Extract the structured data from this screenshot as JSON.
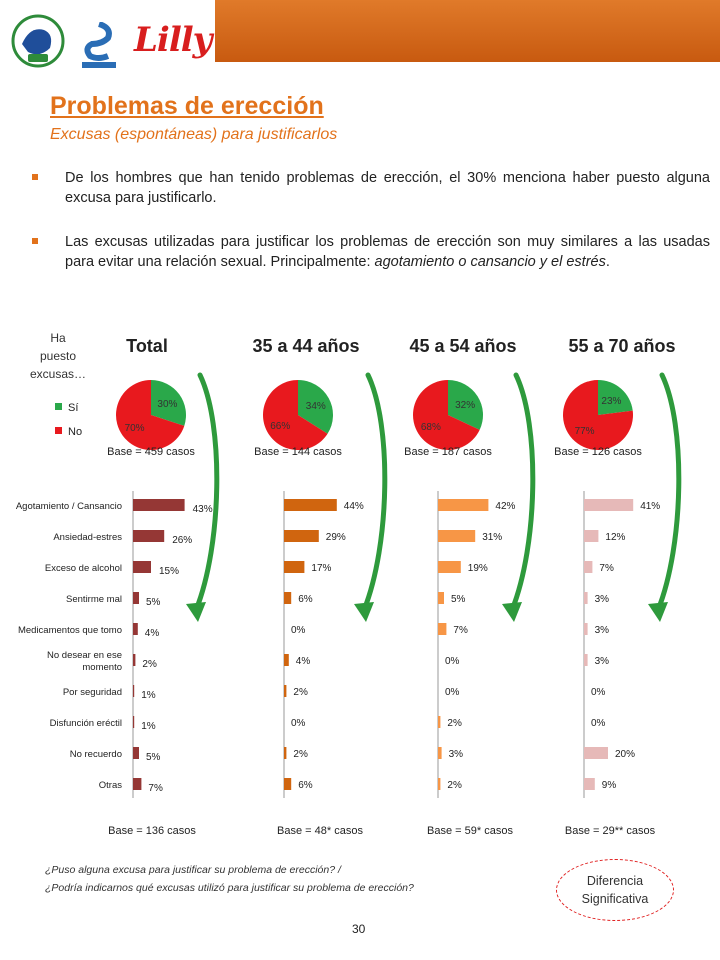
{
  "header": {
    "title": "Problemas de erección",
    "subtitle": "Excusas (espontáneas) para justificarlos",
    "logos": [
      "AESS",
      "ASESA",
      "Lilly"
    ],
    "accent": "#e2721b"
  },
  "bullets": [
    {
      "text": "De los hombres que han tenido problemas de erección, el 30% menciona haber puesto alguna excusa para justificarlo."
    },
    {
      "text_plain": "Las  excusas utilizadas para justificar los problemas de erección son muy similares a las usadas para evitar una relación sexual. Principalmente:",
      "text_italic": "agotamiento o cansancio y el estrés",
      "text_end": "."
    }
  ],
  "pie_question": "Ha puesto excusas…",
  "pie_question_lines": [
    "Ha",
    "puesto",
    "excusas…"
  ],
  "legend": [
    {
      "label": "Sí",
      "color": "#2aa84a"
    },
    {
      "label": "No",
      "color": "#e8191e"
    }
  ],
  "groups": [
    {
      "title": "Total",
      "pie_base": "Base = 459 casos",
      "bar_base": "Base = 136 casos",
      "bar_color": "#953735"
    },
    {
      "title": "35 a 44 años",
      "pie_base": "Base = 144 casos",
      "bar_base": "Base = 48* casos",
      "bar_color": "#d0650f"
    },
    {
      "title": "45 a 54 años",
      "pie_base": "Base = 187 casos",
      "bar_base": "Base = 59* casos",
      "bar_color": "#f79646"
    },
    {
      "title": "55 a 70 años",
      "pie_base": "Base = 126 casos",
      "bar_base": "Base = 29** casos",
      "bar_color": "#e6b9b8"
    }
  ],
  "chart_data": [
    {
      "type": "pie",
      "title": "Total",
      "labels": [
        "Sí",
        "No"
      ],
      "values": [
        30,
        70
      ],
      "value_labels": [
        "30%",
        "70%"
      ]
    },
    {
      "type": "pie",
      "title": "35 a 44 años",
      "labels": [
        "Sí",
        "No"
      ],
      "values": [
        34,
        66
      ],
      "value_labels": [
        "34%",
        "66%"
      ]
    },
    {
      "type": "pie",
      "title": "45 a 54 años",
      "labels": [
        "Sí",
        "No"
      ],
      "values": [
        32,
        68
      ],
      "value_labels": [
        "32%",
        "68%"
      ]
    },
    {
      "type": "pie",
      "title": "55 a 70 años",
      "labels": [
        "Sí",
        "No"
      ],
      "values": [
        23,
        77
      ],
      "value_labels": [
        "23%",
        "77%"
      ]
    },
    {
      "type": "bar",
      "orientation": "horizontal",
      "categories": [
        "Agotamiento / Cansancio",
        "Ansiedad-estres",
        "Exceso de alcohol",
        "Sentirme mal",
        "Medicamentos que tomo",
        "No desear en ese momento",
        "Por seguridad",
        "Disfunción eréctil",
        "No recuerdo",
        "Otras"
      ],
      "category_lines": [
        [
          "Agotamiento / Cansancio"
        ],
        [
          "Ansiedad-estres"
        ],
        [
          "Exceso de alcohol"
        ],
        [
          "Sentirme mal"
        ],
        [
          "Medicamentos que tomo"
        ],
        [
          "No desear en ese",
          "momento"
        ],
        [
          "Por seguridad"
        ],
        [
          "Disfunción eréctil"
        ],
        [
          "No recuerdo"
        ],
        [
          "Otras"
        ]
      ],
      "series": [
        {
          "name": "Total",
          "values": [
            43,
            26,
            15,
            5,
            4,
            2,
            1,
            1,
            5,
            7
          ]
        },
        {
          "name": "35 a 44 años",
          "values": [
            44,
            29,
            17,
            6,
            0,
            4,
            2,
            0,
            2,
            6
          ]
        },
        {
          "name": "45 a 54 años",
          "values": [
            42,
            31,
            19,
            5,
            7,
            0,
            0,
            2,
            3,
            2
          ]
        },
        {
          "name": "55 a 70 años",
          "values": [
            41,
            12,
            7,
            3,
            3,
            3,
            0,
            0,
            20,
            9
          ]
        }
      ],
      "unit": "%"
    }
  ],
  "footer": {
    "question_1": "¿Puso alguna excusa para justificar su problema de erección? /",
    "question_2": "¿Podría indicarnos qué excusas utilizó para justificar su problema de erección?",
    "diff_line1": "Diferencia",
    "diff_line2": "Significativa",
    "page": "30"
  }
}
